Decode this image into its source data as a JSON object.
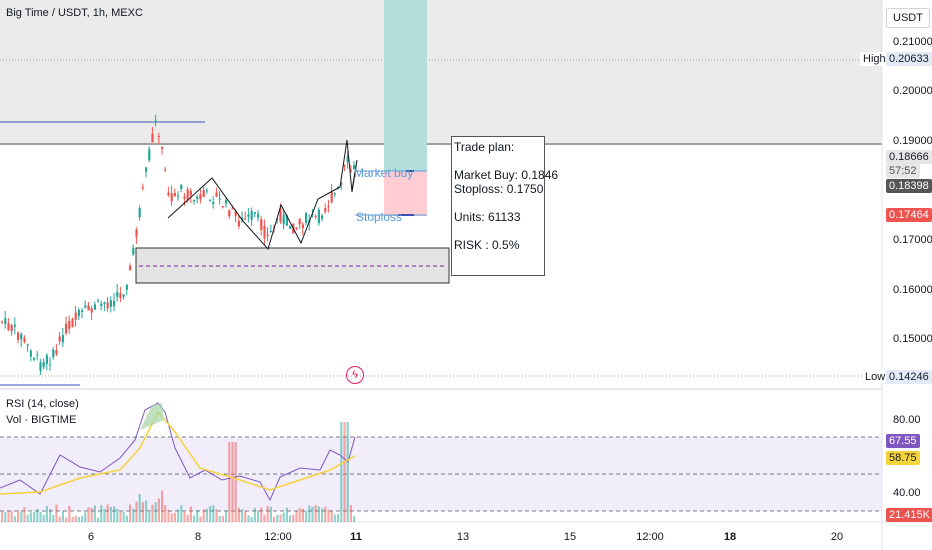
{
  "header": {
    "symbol_title": "Big Time / USDT, 1h, MEXC",
    "currency": "USDT"
  },
  "price_axis": {
    "ticks": [
      "0.21000",
      "0.20000",
      "0.19000",
      "0.17000",
      "0.16000",
      "0.15000"
    ],
    "high_label": "High",
    "high_value": "0.20633",
    "low_label": "Low",
    "low_value": "0.14246",
    "current_price": "0.18666",
    "countdown": "57:52",
    "prev_price": "0.18398",
    "red_price": "0.17464"
  },
  "indicators": {
    "rsi_title": "RSI (14, close)",
    "vol_title": "Vol · BIGTIME",
    "rsi_ticks": [
      "80.00",
      "40.00"
    ],
    "rsi_value": "67.55",
    "rsi_ma_value": "58.75",
    "volume_value": "21.415K"
  },
  "time_axis": {
    "labels": [
      "6",
      "8",
      "12:00",
      "11",
      "13",
      "15",
      "12:00",
      "18",
      "20"
    ]
  },
  "annotations": {
    "market_buy": "Market buy",
    "stoploss": "Stoploss"
  },
  "trade_plan": {
    "title": "Trade plan:",
    "market_buy": "Market Buy: 0.1846",
    "stoploss": "Stoploss: 0.1750",
    "units": "Units: 61133",
    "risk": "RISK : 0.5%"
  },
  "colors": {
    "up": "#26a69a",
    "down": "#ef5350",
    "rsi_line": "#7e57c2",
    "rsi_ma": "#f5d33b",
    "profit_zone": "#b2dfdb",
    "loss_zone": "#ffcdd2",
    "hline": "#3f51b5"
  },
  "chart_data": {
    "type": "candlestick",
    "price_ticks": [
      0.21,
      0.2,
      0.19,
      0.17,
      0.16,
      0.15
    ],
    "high": 0.20633,
    "low": 0.14246,
    "current": 0.18666,
    "entry": 0.1846,
    "stoploss": 0.175,
    "rsi": 67.55,
    "rsi_ma": 58.75,
    "volume": "21.415K"
  }
}
